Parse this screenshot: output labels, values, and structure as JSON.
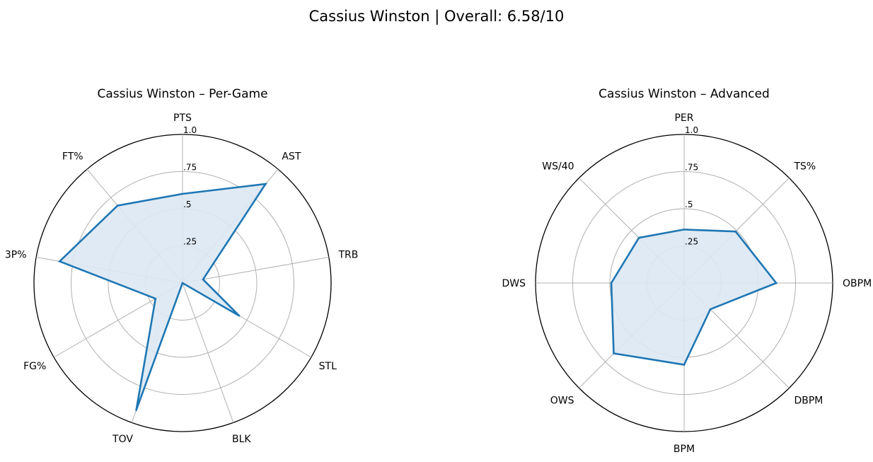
{
  "figure": {
    "title": "Cassius Winston | Overall: 6.58/10"
  },
  "style": {
    "line_color": "#1f77b4",
    "fill_color": "#dce8f3",
    "grid_color": "#b0b0b0",
    "outer_color": "#000000"
  },
  "chart_data": [
    {
      "type": "radar",
      "title": "Cassius Winston – Per-Game",
      "rlim": [
        0,
        1
      ],
      "rticks": [
        0.25,
        0.5,
        0.75,
        1.0
      ],
      "rtick_labels": [
        ".25",
        ".5",
        ".75",
        "1.0"
      ],
      "grid": true,
      "categories": [
        "PTS",
        "AST",
        "TRB",
        "STL",
        "BLK",
        "TOV",
        "FG%",
        "3P%",
        "FT%"
      ],
      "values": [
        0.6,
        0.87,
        0.14,
        0.44,
        0.0,
        0.91,
        0.21,
        0.84,
        0.68
      ]
    },
    {
      "type": "radar",
      "title": "Cassius Winston – Advanced",
      "rlim": [
        0,
        1
      ],
      "rticks": [
        0.25,
        0.5,
        0.75,
        1.0
      ],
      "rtick_labels": [
        ".25",
        ".5",
        ".75",
        "1.0"
      ],
      "grid": true,
      "categories": [
        "PER",
        "TS%",
        "OBPM",
        "DBPM",
        "BPM",
        "OWS",
        "DWS",
        "WS/40"
      ],
      "values": [
        0.36,
        0.49,
        0.62,
        0.25,
        0.55,
        0.67,
        0.49,
        0.43
      ]
    }
  ]
}
